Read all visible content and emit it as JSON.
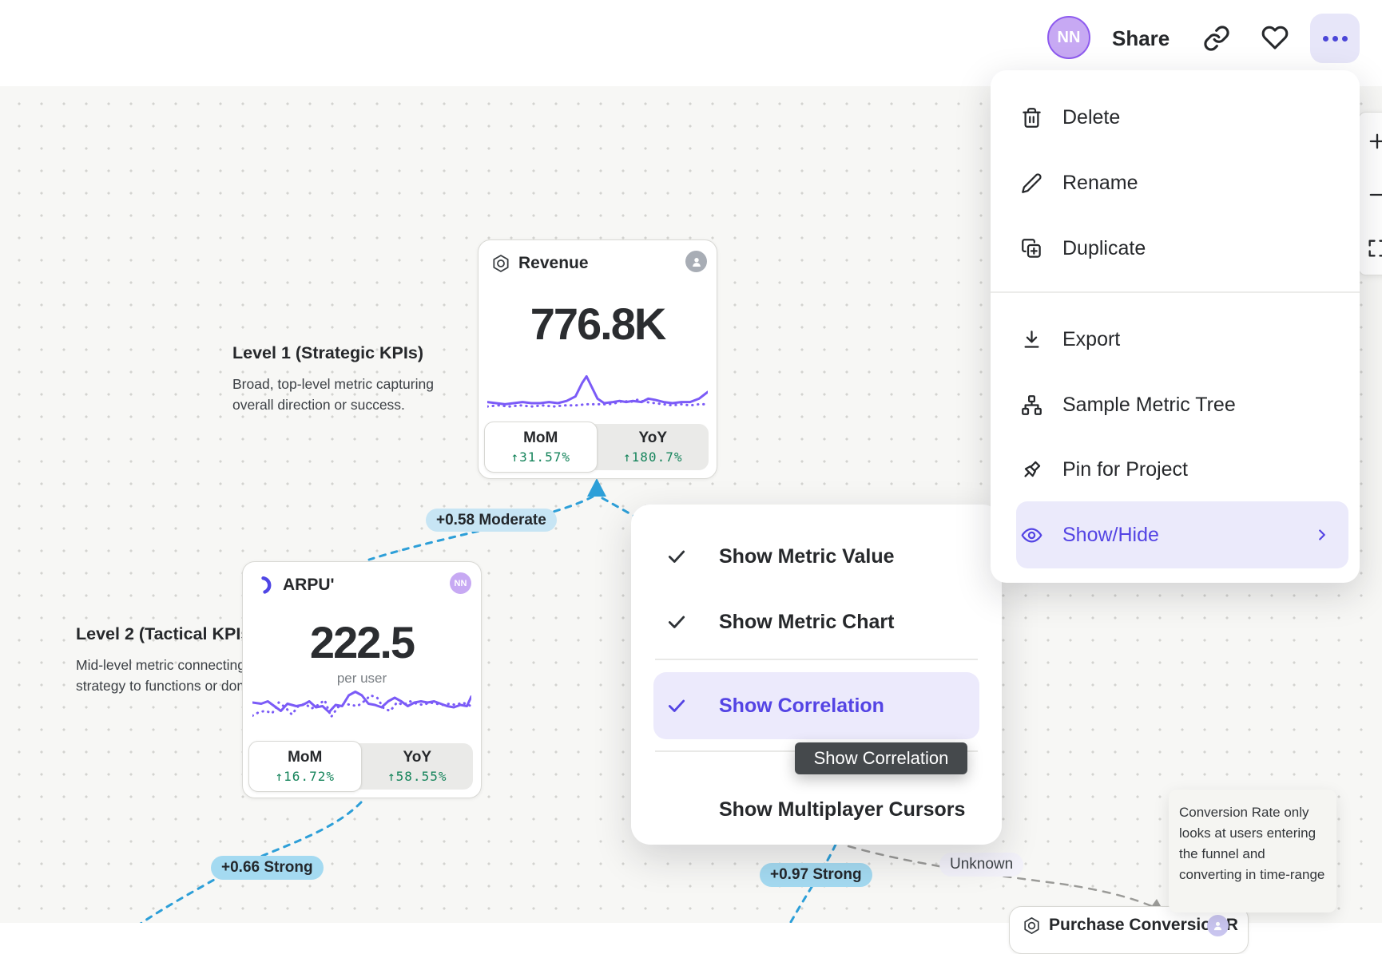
{
  "header": {
    "avatar_initials": "NN",
    "share_label": "Share"
  },
  "menu": {
    "items": [
      {
        "label": "Delete"
      },
      {
        "label": "Rename"
      },
      {
        "label": "Duplicate"
      },
      {
        "label": "Export"
      },
      {
        "label": "Sample Metric Tree"
      },
      {
        "label": "Pin for Project"
      },
      {
        "label": "Show/Hide"
      }
    ]
  },
  "submenu": {
    "items": [
      {
        "label": "Show Metric Value",
        "checked": true
      },
      {
        "label": "Show Metric Chart",
        "checked": true
      },
      {
        "label": "Show Correlation",
        "checked": true
      },
      {
        "label": "Show Multiplayer Cursors",
        "checked": false
      }
    ],
    "tooltip": "Show Correlation"
  },
  "levels": {
    "level1": {
      "title": "Level 1 (Strategic KPIs)",
      "description": "Broad, top-level metric capturing overall direction or success."
    },
    "level2": {
      "title": "Level 2 (Tactical KPIs",
      "description": "Mid-level metric connecting strategy to functions or doma"
    }
  },
  "cards": {
    "revenue": {
      "title": "Revenue",
      "value": "776.8K",
      "mom_label": "MoM",
      "mom_value": "↑31.57%",
      "yoy_label": "YoY",
      "yoy_value": "↑180.7%",
      "owner_initials": ""
    },
    "arpu": {
      "title": "ARPU'",
      "value": "222.5",
      "unit": "per user",
      "mom_label": "MoM",
      "mom_value": "↑16.72%",
      "yoy_label": "YoY",
      "yoy_value": "↑58.55%",
      "owner_initials": "NN"
    },
    "purchase": {
      "title": "Purchase Conversion R"
    }
  },
  "badges": {
    "moderate": "+0.58 Moderate",
    "strong1": "+0.66 Strong",
    "strong2": "+0.97 Strong",
    "unknown": "Unknown"
  },
  "note": "Conversion Rate only looks at users entering the funnel and converting in time-range",
  "sparklines": {
    "revenue": {
      "solid": [
        [
          0,
          29
        ],
        [
          4,
          30
        ],
        [
          8,
          31
        ],
        [
          12,
          30
        ],
        [
          16,
          29
        ],
        [
          20,
          30
        ],
        [
          24,
          30
        ],
        [
          28,
          29
        ],
        [
          32,
          30
        ],
        [
          36,
          28
        ],
        [
          40,
          24
        ],
        [
          43,
          12
        ],
        [
          45,
          6
        ],
        [
          47,
          14
        ],
        [
          50,
          26
        ],
        [
          53,
          30
        ],
        [
          57,
          29
        ],
        [
          60,
          28
        ],
        [
          63,
          29
        ],
        [
          66,
          28
        ],
        [
          70,
          29
        ],
        [
          73,
          26
        ],
        [
          76,
          27
        ],
        [
          80,
          29
        ],
        [
          84,
          30
        ],
        [
          88,
          29
        ],
        [
          92,
          29
        ],
        [
          96,
          26
        ],
        [
          100,
          20
        ]
      ],
      "dotted": [
        [
          0,
          33
        ],
        [
          5,
          32
        ],
        [
          10,
          33
        ],
        [
          15,
          32
        ],
        [
          20,
          33
        ],
        [
          25,
          32
        ],
        [
          30,
          33
        ],
        [
          35,
          32
        ],
        [
          40,
          32
        ],
        [
          45,
          31
        ],
        [
          50,
          31
        ],
        [
          55,
          31
        ],
        [
          58,
          30
        ],
        [
          62,
          28
        ],
        [
          65,
          29
        ],
        [
          68,
          27
        ],
        [
          72,
          29
        ],
        [
          76,
          30
        ],
        [
          80,
          31
        ],
        [
          84,
          32
        ],
        [
          88,
          31
        ],
        [
          92,
          32
        ],
        [
          96,
          31
        ],
        [
          100,
          31
        ]
      ]
    },
    "arpu": {
      "solid": [
        [
          0,
          14
        ],
        [
          4,
          15
        ],
        [
          7,
          13
        ],
        [
          10,
          17
        ],
        [
          13,
          21
        ],
        [
          16,
          15
        ],
        [
          20,
          17
        ],
        [
          23,
          16
        ],
        [
          26,
          13
        ],
        [
          29,
          18
        ],
        [
          32,
          17
        ],
        [
          35,
          22
        ],
        [
          38,
          16
        ],
        [
          41,
          17
        ],
        [
          44,
          8
        ],
        [
          47,
          5
        ],
        [
          50,
          8
        ],
        [
          53,
          15
        ],
        [
          56,
          16
        ],
        [
          59,
          18
        ],
        [
          62,
          13
        ],
        [
          65,
          10
        ],
        [
          68,
          13
        ],
        [
          71,
          17
        ],
        [
          74,
          14
        ],
        [
          77,
          13
        ],
        [
          80,
          14
        ],
        [
          83,
          13
        ],
        [
          86,
          15
        ],
        [
          89,
          17
        ],
        [
          92,
          18
        ],
        [
          95,
          16
        ],
        [
          98,
          17
        ],
        [
          100,
          9
        ]
      ],
      "dotted": [
        [
          0,
          25
        ],
        [
          3,
          22
        ],
        [
          6,
          21
        ],
        [
          9,
          23
        ],
        [
          12,
          14
        ],
        [
          15,
          18
        ],
        [
          18,
          24
        ],
        [
          21,
          17
        ],
        [
          24,
          15
        ],
        [
          27,
          19
        ],
        [
          30,
          16
        ],
        [
          33,
          12
        ],
        [
          36,
          26
        ],
        [
          39,
          18
        ],
        [
          42,
          15
        ],
        [
          45,
          16
        ],
        [
          48,
          17
        ],
        [
          51,
          13
        ],
        [
          54,
          8
        ],
        [
          57,
          10
        ],
        [
          60,
          19
        ],
        [
          63,
          21
        ],
        [
          66,
          14
        ],
        [
          69,
          16
        ],
        [
          72,
          13
        ],
        [
          75,
          15
        ],
        [
          78,
          16
        ],
        [
          81,
          14
        ],
        [
          84,
          15
        ],
        [
          87,
          16
        ],
        [
          90,
          15
        ],
        [
          93,
          16
        ],
        [
          96,
          14
        ],
        [
          100,
          17
        ]
      ]
    }
  },
  "colors": {
    "accent_purple": "#5444E4",
    "menu_highlight": "#EBEAFB",
    "correlation_blue": "#2D9FD8",
    "badge_moderate_bg": "#C7E5F4",
    "badge_strong_bg": "#A4DAF1",
    "positive_green": "#15845B",
    "sparkline_purple": "#7B5BF7"
  }
}
